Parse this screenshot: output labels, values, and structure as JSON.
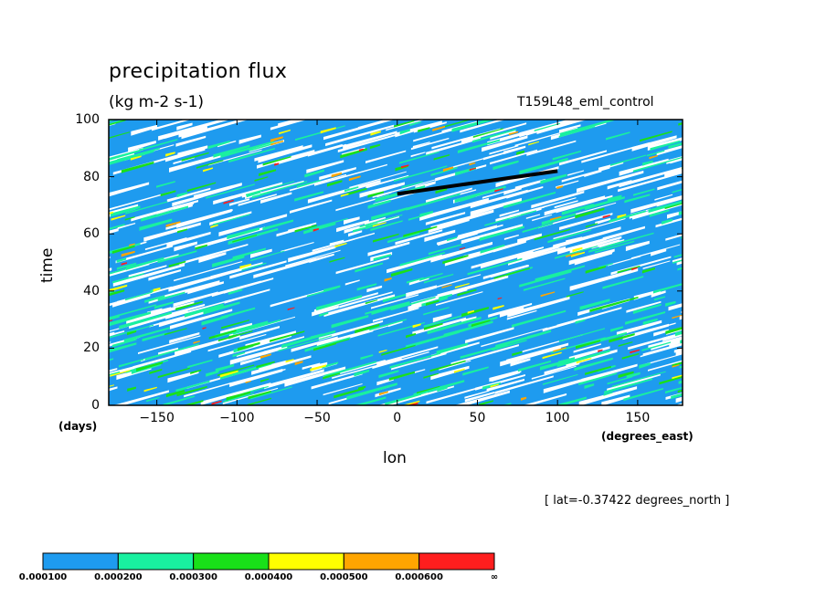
{
  "chart_data": {
    "type": "heatmap",
    "title": "precipitation flux",
    "units": "(kg m-2 s-1)",
    "run_label": "T159L48_eml_control",
    "xlabel": "lon",
    "xunits": "(degrees_east)",
    "ylabel": "time",
    "yunits": "(days)",
    "subtitle": "[ lat=-0.37422 degrees_north ]",
    "xlim": [
      -180,
      178
    ],
    "ylim": [
      0,
      100
    ],
    "xticks": [
      -150,
      -100,
      -50,
      0,
      50,
      100,
      150
    ],
    "yticks": [
      0,
      20,
      40,
      60,
      80,
      100
    ],
    "colorbar": {
      "levels": [
        "0.000100",
        "0.000200",
        "0.000300",
        "0.000400",
        "0.000500",
        "0.000600",
        "∞"
      ],
      "colors": [
        "#1e9bef",
        "#19f0a0",
        "#19e019",
        "#ffff00",
        "#ffa500",
        "#ff1e1e"
      ]
    },
    "annotated_line": {
      "points": [
        [
          0,
          74
        ],
        [
          100,
          82
        ]
      ],
      "color": "#000000"
    }
  },
  "labels": {
    "xtick_labels": [
      "−150",
      "−100",
      "−50",
      "0",
      "50",
      "100",
      "150"
    ],
    "ytick_labels": [
      "0",
      "20",
      "40",
      "60",
      "80",
      "100"
    ]
  }
}
